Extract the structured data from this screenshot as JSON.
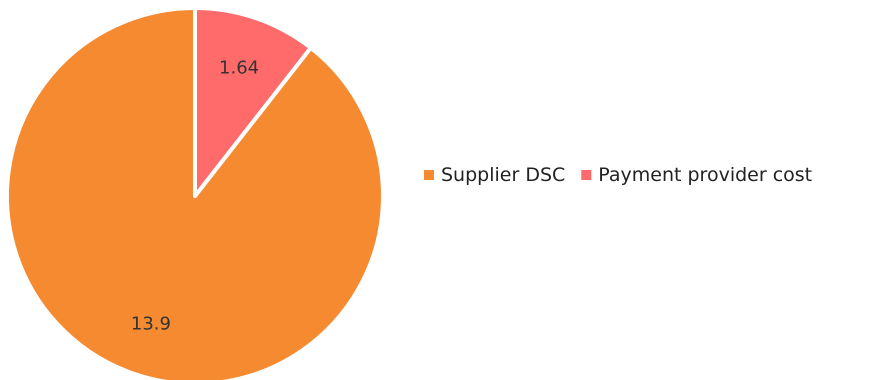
{
  "chart_data": {
    "type": "pie",
    "series": [
      {
        "name": "Supplier DSC",
        "value": 13.9,
        "label": "13.9",
        "color": "#F58A31"
      },
      {
        "name": "Payment provider cost",
        "value": 1.64,
        "label": "1.64",
        "color": "#FF6B6B"
      }
    ],
    "start_angle": "12 o'clock",
    "direction": "counterclockwise",
    "slice_border_color": "#ffffff",
    "legend_position": "right"
  }
}
